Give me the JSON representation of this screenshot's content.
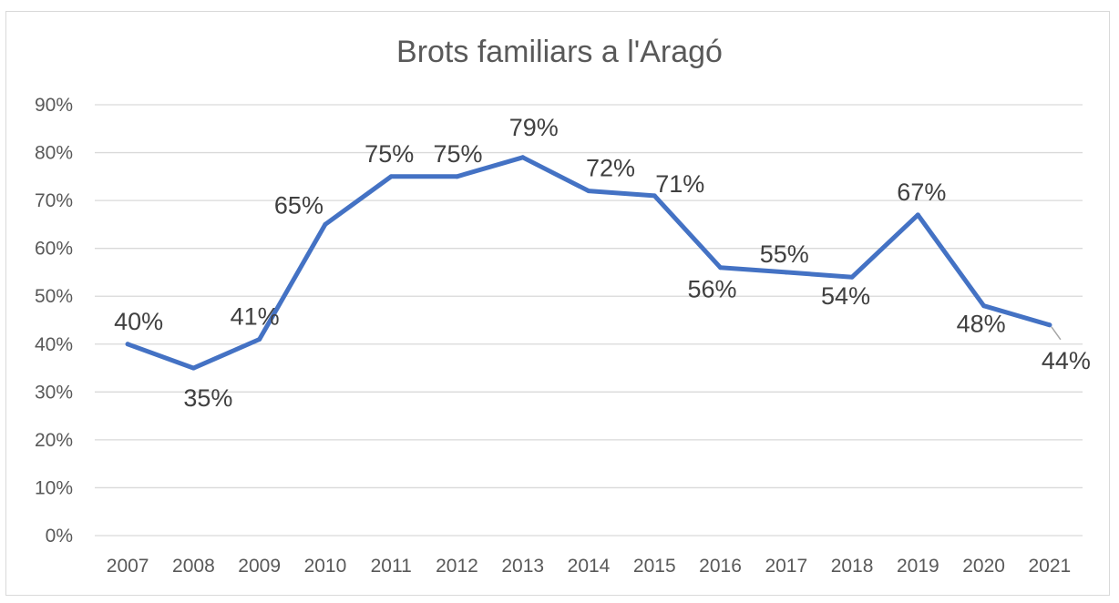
{
  "chart_data": {
    "type": "line",
    "title": "Brots familiars a l'Aragó",
    "xlabel": "",
    "ylabel": "",
    "categories": [
      "2007",
      "2008",
      "2009",
      "2010",
      "2011",
      "2012",
      "2013",
      "2014",
      "2015",
      "2016",
      "2017",
      "2018",
      "2019",
      "2020",
      "2021"
    ],
    "series": [
      {
        "values": [
          40,
          35,
          41,
          65,
          75,
          75,
          79,
          72,
          71,
          56,
          55,
          54,
          67,
          48,
          44
        ],
        "data_labels": [
          "40%",
          "35%",
          "41%",
          "65%",
          "75%",
          "75%",
          "79%",
          "72%",
          "71%",
          "56%",
          "55%",
          "54%",
          "67%",
          "48%",
          "44%"
        ],
        "color": "#4472C4"
      }
    ],
    "ylim": [
      0,
      90
    ],
    "y_ticks": [
      "0%",
      "10%",
      "20%",
      "30%",
      "40%",
      "50%",
      "60%",
      "70%",
      "80%",
      "90%"
    ],
    "grid": true,
    "legend": "none"
  }
}
